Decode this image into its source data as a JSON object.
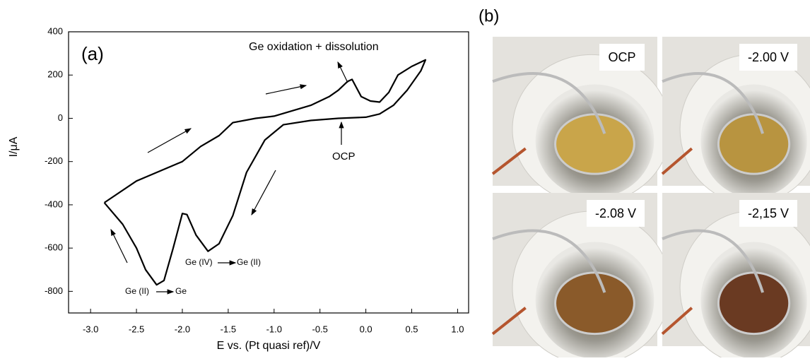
{
  "chart_data": {
    "type": "line",
    "xlabel": "E vs. (Pt quasi ref)/V",
    "ylabel": "I/μA",
    "xlim": [
      -3.24,
      1.12
    ],
    "ylim": [
      -900,
      400
    ],
    "xticks": [
      {
        "value": -3,
        "label": "-3.0"
      },
      {
        "value": -2.5,
        "label": "-2.5"
      },
      {
        "value": -2,
        "label": "-2.0"
      },
      {
        "value": -1.5,
        "label": "-1.5"
      },
      {
        "value": -1,
        "label": "-1.0"
      },
      {
        "value": -0.5,
        "label": "-0.5"
      },
      {
        "value": 0,
        "label": "0.0"
      },
      {
        "value": 0.5,
        "label": "0.5"
      },
      {
        "value": 1,
        "label": "1.0"
      }
    ],
    "yticks": [
      400,
      200,
      0,
      -200,
      -400,
      -600,
      -800
    ],
    "color": "#000000",
    "x": [
      -2.85,
      -2.5,
      -2.0,
      -1.8,
      -1.6,
      -1.45,
      -1.2,
      -1.0,
      -0.6,
      -0.4,
      -0.3,
      -0.2,
      -0.15,
      -0.1,
      -0.05,
      0.05,
      0.15,
      0.25,
      0.35,
      0.5,
      0.65,
      0.6,
      0.45,
      0.3,
      0.15,
      0.0,
      -0.3,
      -0.6,
      -0.9,
      -1.1,
      -1.3,
      -1.45,
      -1.6,
      -1.72,
      -1.85,
      -1.95,
      -2.0,
      -2.1,
      -2.2,
      -2.28,
      -2.4,
      -2.5,
      -2.65,
      -2.85
    ],
    "values": [
      -390,
      -290,
      -200,
      -130,
      -80,
      -20,
      0,
      10,
      60,
      100,
      130,
      170,
      180,
      140,
      100,
      80,
      75,
      120,
      200,
      240,
      270,
      220,
      130,
      60,
      20,
      5,
      0,
      -10,
      -30,
      -100,
      -250,
      -450,
      -580,
      -615,
      -540,
      -445,
      -440,
      -600,
      -750,
      -770,
      -700,
      -600,
      -490,
      -390
    ],
    "annotations": [
      "(a)",
      "Ge oxidation + dissolution",
      "OCP",
      "Ge (IV)",
      "Ge (II)",
      "Ge (II)",
      "Ge"
    ]
  },
  "panel_b": {
    "label": "(b)",
    "photos": [
      "OCP",
      "-2.00 V",
      "-2.08 V",
      "-2,15 V"
    ]
  }
}
